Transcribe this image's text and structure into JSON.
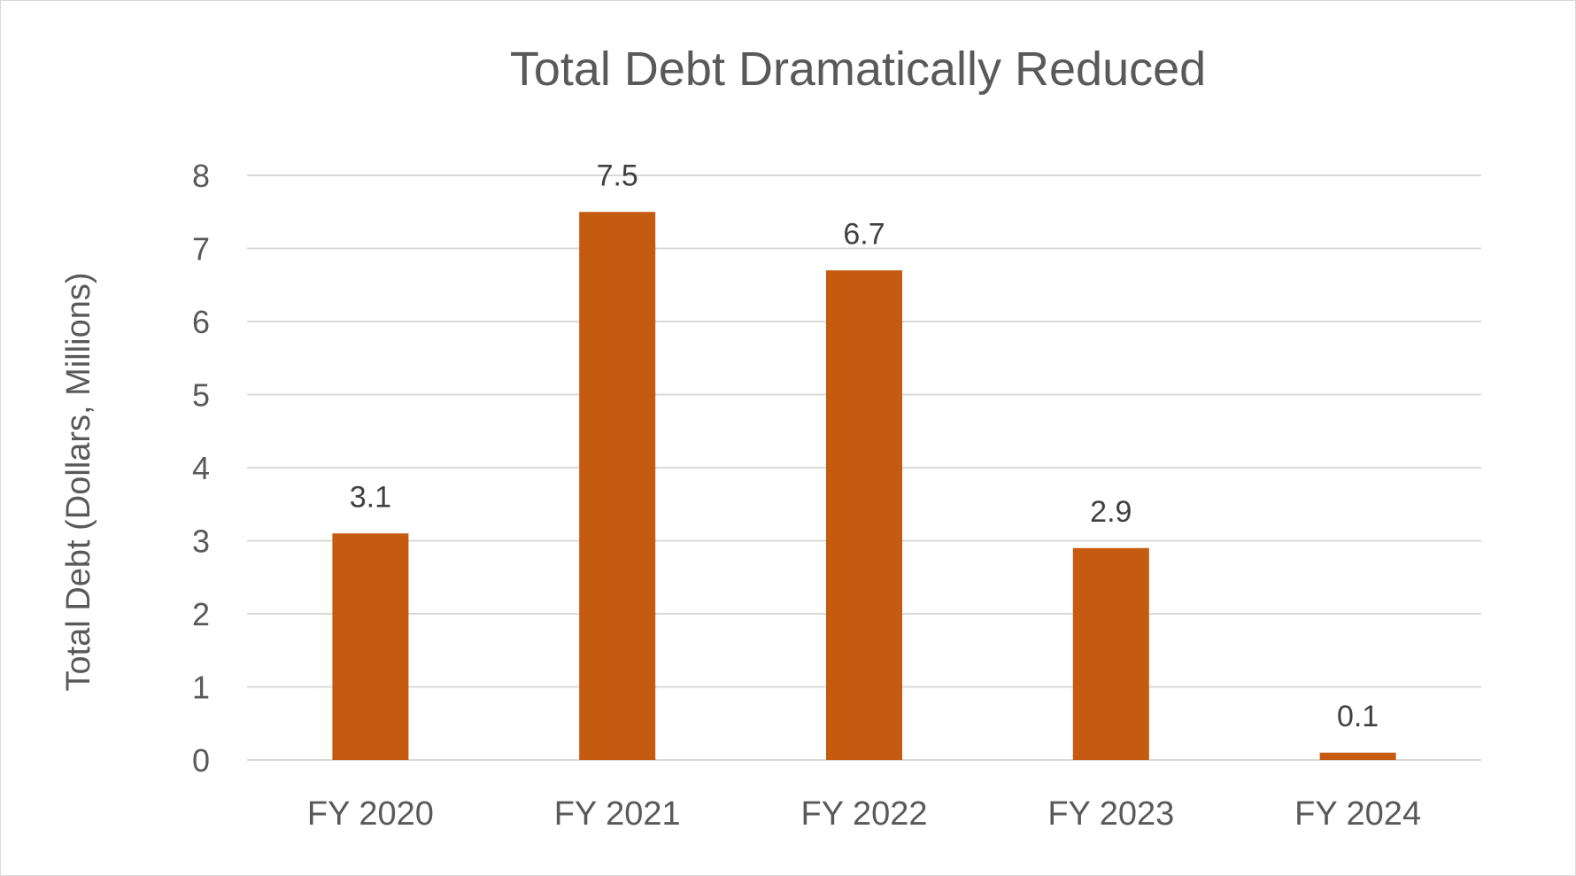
{
  "chart_data": {
    "type": "bar",
    "title": "Total Debt Dramatically Reduced",
    "xlabel": "",
    "ylabel": "Total Debt (Dollars, Millions)",
    "categories": [
      "FY 2020",
      "FY 2021",
      "FY 2022",
      "FY 2023",
      "FY 2024"
    ],
    "values": [
      3.1,
      7.5,
      6.7,
      2.9,
      0.1
    ],
    "data_labels": [
      "3.1",
      "7.5",
      "6.7",
      "2.9",
      "0.1"
    ],
    "ylim": [
      0,
      8
    ],
    "yticks": [
      "0",
      "1",
      "2",
      "3",
      "4",
      "5",
      "6",
      "7",
      "8"
    ],
    "grid": true,
    "legend": "none",
    "bar_color": "#C55A11"
  }
}
